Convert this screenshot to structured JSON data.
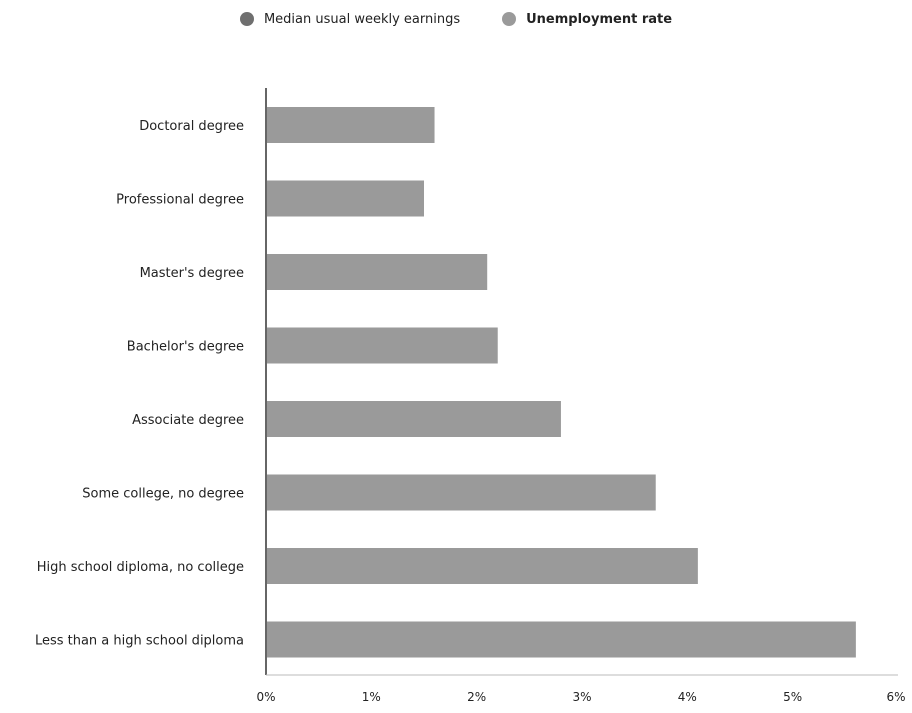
{
  "legend": {
    "items": [
      {
        "label": "Median usual weekly earnings",
        "color": "#6f6f6f"
      },
      {
        "label": "Unemployment rate",
        "color": "#9a9a9a"
      }
    ]
  },
  "chart_data": {
    "type": "bar",
    "orientation": "horizontal",
    "categories": [
      "Doctoral degree",
      "Professional degree",
      "Master's degree",
      "Bachelor's degree",
      "Associate degree",
      "Some college, no degree",
      "High school diploma, no college",
      "Less than a high school diploma"
    ],
    "series": [
      {
        "name": "Unemployment rate",
        "values": [
          1.6,
          1.5,
          2.1,
          2.2,
          2.8,
          3.7,
          4.1,
          5.6
        ]
      }
    ],
    "xlim": [
      0,
      6
    ],
    "xticks": [
      "0%",
      "1%",
      "2%",
      "3%",
      "4%",
      "5%",
      "6%"
    ],
    "grid": false,
    "legend_position": "top-center",
    "bar_color": "#9a9a9a"
  }
}
